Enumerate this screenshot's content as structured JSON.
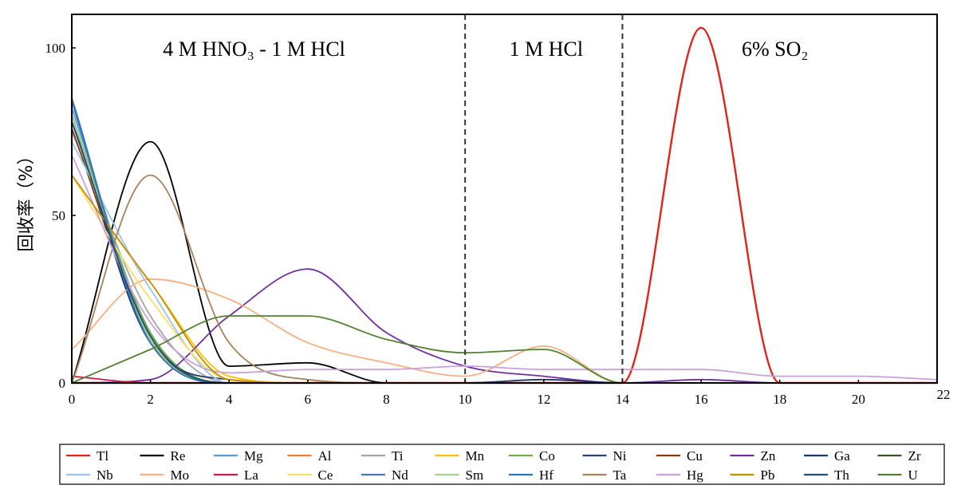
{
  "chart_data": {
    "type": "line",
    "title": "",
    "xlabel": "",
    "ylabel": "回收率（%）",
    "xlim": [
      0,
      22
    ],
    "ylim": [
      0,
      110
    ],
    "xticks": [
      0,
      2,
      4,
      6,
      8,
      10,
      12,
      14,
      16,
      18,
      20,
      22
    ],
    "yticks": [
      0,
      50,
      100
    ],
    "regions": [
      {
        "label": "4 M HNO₃ - 1 M HCl",
        "x_start": 0,
        "x_end": 10
      },
      {
        "label": "1 M HCl",
        "x_start": 10,
        "x_end": 14
      },
      {
        "label": "6% SO₂",
        "x_start": 14,
        "x_end": 22
      }
    ],
    "x": [
      0,
      2,
      4,
      6,
      8,
      10,
      12,
      14,
      16,
      18,
      20,
      22
    ],
    "series": [
      {
        "name": "Tl",
        "color": "#e0231b",
        "values": [
          0,
          0,
          0,
          0,
          0,
          0,
          0,
          0,
          106,
          0,
          0,
          0
        ]
      },
      {
        "name": "Re",
        "color": "#000000",
        "values": [
          0,
          72,
          5,
          6,
          0,
          0,
          0,
          0,
          0,
          0,
          0,
          0
        ]
      },
      {
        "name": "Mg",
        "color": "#5b9bd5",
        "values": [
          82,
          15,
          0,
          0,
          0,
          0,
          0,
          0,
          0,
          0,
          0,
          0
        ]
      },
      {
        "name": "Al",
        "color": "#ed7d31",
        "values": [
          80,
          14,
          0,
          0,
          0,
          0,
          0,
          0,
          0,
          0,
          0,
          0
        ]
      },
      {
        "name": "Ti",
        "color": "#a5a5a5",
        "values": [
          75,
          20,
          0,
          0,
          0,
          0,
          0,
          0,
          0,
          0,
          0,
          0
        ]
      },
      {
        "name": "Mn",
        "color": "#ffc000",
        "values": [
          62,
          30,
          2,
          0,
          0,
          0,
          0,
          0,
          0,
          0,
          0,
          0
        ]
      },
      {
        "name": "Co",
        "color": "#70ad47",
        "values": [
          80,
          15,
          0,
          0,
          0,
          0,
          0,
          0,
          0,
          0,
          0,
          0
        ]
      },
      {
        "name": "Ni",
        "color": "#264478",
        "values": [
          78,
          14,
          0,
          0,
          0,
          0,
          0,
          0,
          0,
          0,
          0,
          0
        ]
      },
      {
        "name": "Cu",
        "color": "#843c0c",
        "values": [
          76,
          13,
          0,
          0,
          0,
          0,
          0,
          0,
          0,
          0,
          0,
          0
        ]
      },
      {
        "name": "Zn",
        "color": "#7030a0",
        "values": [
          0,
          1,
          20,
          34,
          15,
          5,
          2,
          0,
          1,
          0,
          0,
          0
        ]
      },
      {
        "name": "Ga",
        "color": "#203864",
        "values": [
          80,
          12,
          1,
          0,
          0,
          0,
          1,
          0,
          0,
          0,
          0,
          0
        ]
      },
      {
        "name": "Zr",
        "color": "#375623",
        "values": [
          78,
          14,
          0,
          0,
          0,
          0,
          0,
          0,
          0,
          0,
          0,
          0
        ]
      },
      {
        "name": "Nb",
        "color": "#9dc3e6",
        "values": [
          72,
          28,
          0,
          0,
          0,
          0,
          0,
          0,
          0,
          0,
          0,
          0
        ]
      },
      {
        "name": "Mo",
        "color": "#f4b183",
        "values": [
          10,
          31,
          25,
          12,
          6,
          2,
          11,
          0,
          0,
          0,
          0,
          0
        ]
      },
      {
        "name": "La",
        "color": "#c9184a",
        "values": [
          2,
          0,
          0,
          0,
          0,
          0,
          0,
          0,
          0,
          0,
          0,
          0
        ]
      },
      {
        "name": "Ce",
        "color": "#ffe066",
        "values": [
          62,
          25,
          1,
          0,
          0,
          0,
          0,
          0,
          0,
          0,
          0,
          0
        ]
      },
      {
        "name": "Nd",
        "color": "#4a78b8",
        "values": [
          84,
          12,
          0,
          0,
          0,
          0,
          0,
          0,
          0,
          0,
          0,
          0
        ]
      },
      {
        "name": "Sm",
        "color": "#a9d18e",
        "values": [
          80,
          13,
          0,
          0,
          0,
          0,
          0,
          0,
          0,
          0,
          0,
          0
        ]
      },
      {
        "name": "Hf",
        "color": "#2e75b6",
        "values": [
          85,
          12,
          0,
          0,
          0,
          0,
          0,
          0,
          0,
          0,
          0,
          0
        ]
      },
      {
        "name": "Ta",
        "color": "#a5835a",
        "values": [
          0,
          62,
          12,
          1,
          0,
          0,
          0,
          0,
          0,
          0,
          0,
          0
        ]
      },
      {
        "name": "Hg",
        "color": "#c9a0dc",
        "values": [
          68,
          18,
          3,
          4,
          4,
          5,
          4,
          4,
          4,
          2,
          2,
          1
        ]
      },
      {
        "name": "Pb",
        "color": "#bf9000",
        "values": [
          62,
          30,
          1,
          0,
          0,
          0,
          0,
          0,
          0,
          0,
          0,
          0
        ]
      },
      {
        "name": "Th",
        "color": "#1f4e79",
        "values": [
          78,
          14,
          0,
          0,
          0,
          0,
          0,
          0,
          0,
          0,
          0,
          0
        ]
      },
      {
        "name": "U",
        "color": "#548235",
        "values": [
          0,
          10,
          20,
          20,
          13,
          9,
          10,
          0,
          0,
          0,
          0,
          0
        ]
      }
    ],
    "legend": "bottom"
  }
}
